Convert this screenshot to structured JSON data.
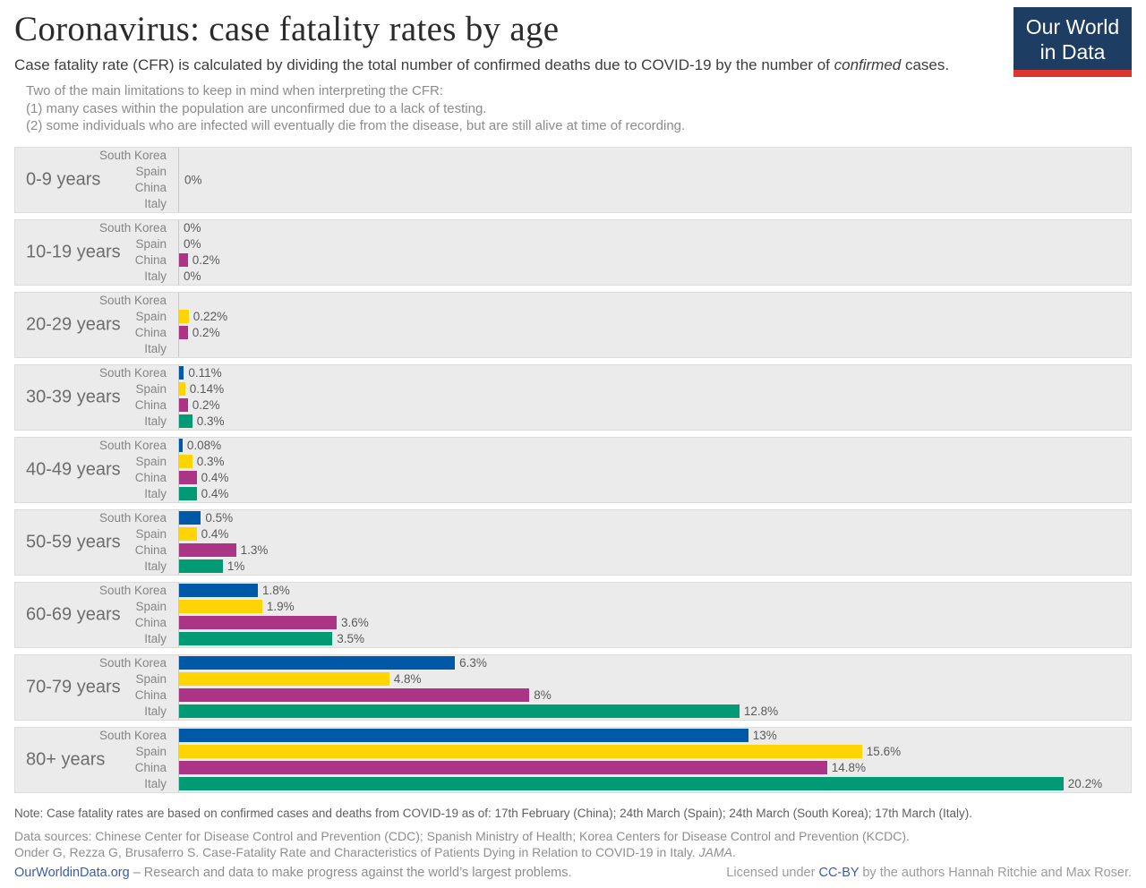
{
  "header": {
    "title": "Coronavirus: case fatality rates by age",
    "subtitle_prefix": "Case fatality rate (CFR) is calculated by dividing the total number of confirmed deaths due to COVID-19 by the number of ",
    "subtitle_italic": "confirmed",
    "subtitle_suffix": " cases.",
    "limitations": [
      "Two of the main limitations to keep in mind when interpreting the CFR:",
      "(1) many cases within the population are unconfirmed due to a lack of testing.",
      "(2) some individuals who are infected will eventually die from the disease, but are still alive at time of recording."
    ],
    "logo": {
      "line1": "Our World",
      "line2": "in Data",
      "bg_color": "#1d3d63",
      "stripe_color": "#dc352d"
    }
  },
  "chart_data": {
    "type": "bar",
    "orientation": "horizontal",
    "title": "Coronavirus: case fatality rates by age",
    "unit": "%",
    "xlim": [
      0,
      20.2
    ],
    "grid": false,
    "legend": "none (country labels inline per bar)",
    "countries": [
      "South Korea",
      "Spain",
      "China",
      "Italy"
    ],
    "series_colors": {
      "South Korea": "#0059a6",
      "Spain": "#ffd403",
      "China": "#ac3486",
      "Italy": "#009a74"
    },
    "groups": [
      {
        "age": "0-9 years",
        "center_label": "0%",
        "bars": [
          {
            "country": "South Korea",
            "value": 0,
            "label": ""
          },
          {
            "country": "Spain",
            "value": 0,
            "label": ""
          },
          {
            "country": "China",
            "value": 0,
            "label": ""
          },
          {
            "country": "Italy",
            "value": 0,
            "label": ""
          }
        ]
      },
      {
        "age": "10-19 years",
        "center_label": "",
        "bars": [
          {
            "country": "South Korea",
            "value": 0,
            "label": "0%"
          },
          {
            "country": "Spain",
            "value": 0,
            "label": "0%"
          },
          {
            "country": "China",
            "value": 0.2,
            "label": "0.2%"
          },
          {
            "country": "Italy",
            "value": 0,
            "label": "0%"
          }
        ]
      },
      {
        "age": "20-29 years",
        "center_label": "",
        "bars": [
          {
            "country": "South Korea",
            "value": 0,
            "label": ""
          },
          {
            "country": "Spain",
            "value": 0.22,
            "label": "0.22%"
          },
          {
            "country": "China",
            "value": 0.2,
            "label": "0.2%"
          },
          {
            "country": "Italy",
            "value": 0,
            "label": ""
          }
        ]
      },
      {
        "age": "30-39 years",
        "center_label": "",
        "bars": [
          {
            "country": "South Korea",
            "value": 0.11,
            "label": "0.11%"
          },
          {
            "country": "Spain",
            "value": 0.14,
            "label": "0.14%"
          },
          {
            "country": "China",
            "value": 0.2,
            "label": "0.2%"
          },
          {
            "country": "Italy",
            "value": 0.3,
            "label": "0.3%"
          }
        ]
      },
      {
        "age": "40-49 years",
        "center_label": "",
        "bars": [
          {
            "country": "South Korea",
            "value": 0.08,
            "label": "0.08%"
          },
          {
            "country": "Spain",
            "value": 0.3,
            "label": "0.3%"
          },
          {
            "country": "China",
            "value": 0.4,
            "label": "0.4%"
          },
          {
            "country": "Italy",
            "value": 0.4,
            "label": "0.4%"
          }
        ]
      },
      {
        "age": "50-59 years",
        "center_label": "",
        "bars": [
          {
            "country": "South Korea",
            "value": 0.5,
            "label": "0.5%"
          },
          {
            "country": "Spain",
            "value": 0.4,
            "label": "0.4%"
          },
          {
            "country": "China",
            "value": 1.3,
            "label": "1.3%"
          },
          {
            "country": "Italy",
            "value": 1,
            "label": "1%"
          }
        ]
      },
      {
        "age": "60-69 years",
        "center_label": "",
        "bars": [
          {
            "country": "South Korea",
            "value": 1.8,
            "label": "1.8%"
          },
          {
            "country": "Spain",
            "value": 1.9,
            "label": "1.9%"
          },
          {
            "country": "China",
            "value": 3.6,
            "label": "3.6%"
          },
          {
            "country": "Italy",
            "value": 3.5,
            "label": "3.5%"
          }
        ]
      },
      {
        "age": "70-79 years",
        "center_label": "",
        "bars": [
          {
            "country": "South Korea",
            "value": 6.3,
            "label": "6.3%"
          },
          {
            "country": "Spain",
            "value": 4.8,
            "label": "4.8%"
          },
          {
            "country": "China",
            "value": 8,
            "label": "8%"
          },
          {
            "country": "Italy",
            "value": 12.8,
            "label": "12.8%"
          }
        ]
      },
      {
        "age": "80+ years",
        "center_label": "",
        "bars": [
          {
            "country": "South Korea",
            "value": 13,
            "label": "13%"
          },
          {
            "country": "Spain",
            "value": 15.6,
            "label": "15.6%"
          },
          {
            "country": "China",
            "value": 14.8,
            "label": "14.8%"
          },
          {
            "country": "Italy",
            "value": 20.2,
            "label": "20.2%"
          }
        ]
      }
    ]
  },
  "footer": {
    "note": "Note: Case fatality rates are based on confirmed cases and deaths from COVID-19 as of: 17th February (China); 24th March (Spain); 24th March (South Korea); 17th March (Italy).",
    "sources_line1": "Data sources: Chinese Center for Disease Control and Prevention (CDC); Spanish Ministry of Health; Korea Centers for Disease Control and Prevention (KCDC).",
    "citation_prefix": "Onder G, Rezza G, Brusaferro S. Case-Fatality Rate and Characteristics of Patients Dying in Relation to COVID-19 in Italy. ",
    "citation_italic": "JAMA",
    "citation_suffix": ".",
    "link_label": "OurWorldinData.org",
    "tagline": " – Research and data to make progress against the world’s largest problems.",
    "license_prefix": "Licensed under ",
    "license_link": "CC-BY",
    "license_suffix": " by the authors Hannah Ritchie and Max Roser."
  }
}
